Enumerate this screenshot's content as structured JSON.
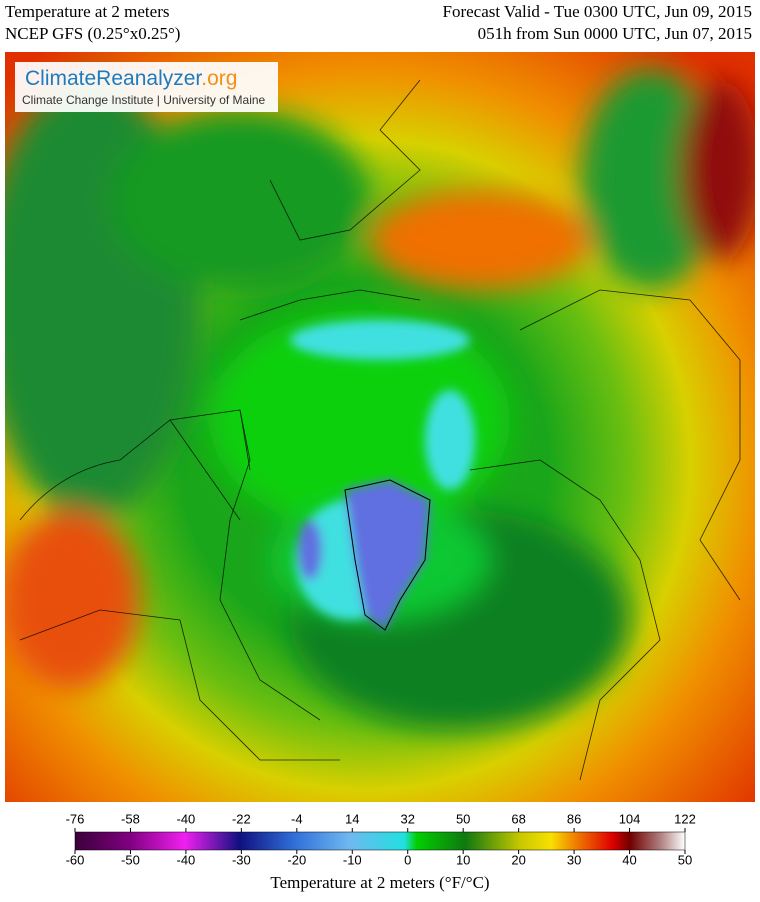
{
  "header": {
    "title": "Temperature at 2 meters",
    "model": "NCEP GFS (0.25°x0.25°)",
    "valid": "Forecast Valid - Tue 0300 UTC, Jun 09, 2015",
    "lead": "051h from Sun 0000 UTC, Jun 07, 2015"
  },
  "logo": {
    "name": "ClimateReanalyzer",
    "domain": ".org",
    "subtitle": "Climate Change Institute | University of Maine"
  },
  "colorbar": {
    "label": "Temperature at 2 meters (°F/°C)",
    "fahrenheit_ticks": [
      -76,
      -58,
      -40,
      -22,
      -4,
      14,
      32,
      50,
      68,
      86,
      104,
      122
    ],
    "celsius_ticks": [
      -60,
      -50,
      -40,
      -30,
      -20,
      -10,
      0,
      10,
      20,
      30,
      40,
      50
    ]
  }
}
